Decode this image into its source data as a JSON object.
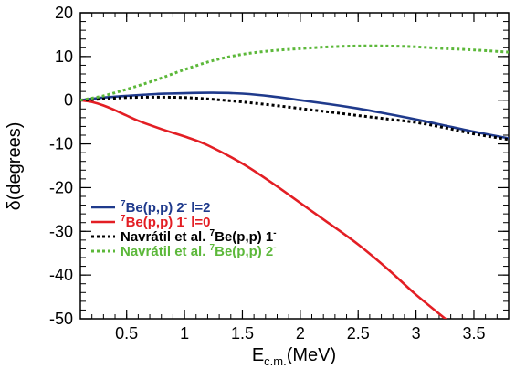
{
  "chart_data": {
    "type": "line",
    "title": "",
    "xlabel": {
      "main": "E",
      "sub": "c.m.",
      "rest": "(MeV)"
    },
    "ylabel": "δ(degrees)",
    "xlim": [
      0.1,
      3.8
    ],
    "ylim": [
      -50,
      20
    ],
    "x_ticks": [
      0.5,
      1,
      1.5,
      2,
      2.5,
      3,
      3.5
    ],
    "x_tick_labels": [
      "0.5",
      "1",
      "1.5",
      "2",
      "2.5",
      "3",
      "3.5"
    ],
    "y_ticks": [
      -50,
      -40,
      -30,
      -20,
      -10,
      0,
      10,
      20
    ],
    "y_tick_labels": [
      "-50",
      "-40",
      "-30",
      "-20",
      "-10",
      "0",
      "10",
      "20"
    ],
    "grid": false,
    "legend_position": "bottom-left",
    "series": [
      {
        "name": "7Be(p,p) 2- l=2",
        "legend": {
          "sup1": "7",
          "text1": "Be(p,p) 2",
          "sup2": "-",
          "text2": " l=2"
        },
        "color": "#1f3a8c",
        "style": "solid",
        "x": [
          0.1,
          0.3,
          0.5,
          0.75,
          1.0,
          1.25,
          1.5,
          1.75,
          2.0,
          2.25,
          2.5,
          2.75,
          3.0,
          3.25,
          3.5,
          3.8
        ],
        "y": [
          0,
          0.6,
          1.0,
          1.4,
          1.6,
          1.7,
          1.5,
          0.9,
          0,
          -0.9,
          -1.9,
          -3.1,
          -4.4,
          -5.8,
          -7.2,
          -8.7
        ]
      },
      {
        "name": "7Be(p,p) 1- l=0",
        "legend": {
          "sup1": "7",
          "text1": "Be(p,p) 1",
          "sup2": "-",
          "text2": " l=0"
        },
        "color": "#e31e24",
        "style": "solid",
        "x": [
          0.1,
          0.2,
          0.3,
          0.4,
          0.5,
          0.6,
          0.8,
          1.0,
          1.2,
          1.5,
          1.75,
          2.0,
          2.25,
          2.5,
          2.75,
          3.0,
          3.3
        ],
        "y": [
          0,
          -0.4,
          -1.2,
          -2.3,
          -3.5,
          -4.7,
          -6.6,
          -8.3,
          -10.3,
          -14.5,
          -18.8,
          -23.5,
          -28.2,
          -33.0,
          -38.5,
          -44.5,
          -51.0
        ]
      },
      {
        "name": "Navratil et al. 7Be(p,p) 1-",
        "legend": {
          "text1": "Navrátil et  al. ",
          "sup1": "7",
          "text2": "Be(p,p) 1",
          "sup2": "-"
        },
        "color": "#000000",
        "style": "dotted",
        "x": [
          0.1,
          0.3,
          0.5,
          0.75,
          1.0,
          1.25,
          1.5,
          1.75,
          2.0,
          2.25,
          2.5,
          2.75,
          3.0,
          3.25,
          3.5,
          3.8
        ],
        "y": [
          0,
          0.3,
          0.6,
          0.7,
          0.6,
          0.2,
          -0.4,
          -1.1,
          -1.9,
          -2.7,
          -3.5,
          -4.3,
          -5.1,
          -6.3,
          -7.7,
          -9.0
        ]
      },
      {
        "name": "Navratil et al. 7Be(p,p) 2-",
        "legend": {
          "text1": "Navrátil et  al. ",
          "sup1": "7",
          "text2": "Be(p,p) 2",
          "sup2": "-"
        },
        "color": "#5cb83a",
        "style": "dotted",
        "x": [
          0.1,
          0.3,
          0.5,
          0.75,
          1.0,
          1.25,
          1.5,
          1.75,
          2.0,
          2.25,
          2.5,
          2.75,
          3.0,
          3.25,
          3.5,
          3.8
        ],
        "y": [
          0,
          1.0,
          2.5,
          4.6,
          7.0,
          9.1,
          10.5,
          11.3,
          11.8,
          12.2,
          12.4,
          12.4,
          12.2,
          11.8,
          11.5,
          11.0
        ]
      }
    ]
  }
}
